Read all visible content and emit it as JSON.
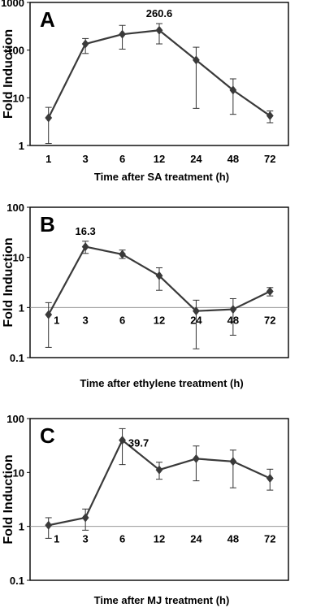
{
  "chart_data": [
    {
      "type": "line",
      "panel": "A",
      "scale": "log",
      "ylim": [
        1,
        1000
      ],
      "yticks": [
        "1",
        "10",
        "100",
        "1000"
      ],
      "categories": [
        "1",
        "3",
        "6",
        "12",
        "24",
        "48",
        "72"
      ],
      "values": [
        3.8,
        135,
        215,
        260.6,
        62,
        14.5,
        4.2
      ],
      "err_low": [
        1.1,
        85,
        105,
        135,
        6,
        4.5,
        3.0
      ],
      "err_high": [
        6.3,
        175,
        330,
        360,
        115,
        25,
        5.3
      ],
      "xlabel": "Time after SA treatment (h)",
      "ylabel": "Fold Induction",
      "annotation": {
        "text": "260.6",
        "index": 3
      },
      "reference_line": false,
      "grid": false,
      "color": "#3a3a3a"
    },
    {
      "type": "line",
      "panel": "B",
      "scale": "log",
      "ylim": [
        0.1,
        100
      ],
      "yticks": [
        "0.1",
        "1",
        "10",
        "100"
      ],
      "categories": [
        "1",
        "3",
        "6",
        "12",
        "24",
        "48",
        "72"
      ],
      "values": [
        0.72,
        16.3,
        11.5,
        4.3,
        0.85,
        0.92,
        2.1
      ],
      "err_low": [
        0.16,
        12,
        9.5,
        2.2,
        0.15,
        0.28,
        1.7
      ],
      "err_high": [
        1.25,
        21,
        14,
        6.2,
        1.4,
        1.5,
        2.5
      ],
      "xlabel": "Time after ethylene treatment (h)",
      "ylabel": "Fold Induction",
      "annotation": {
        "text": "16.3",
        "index": 1
      },
      "reference_line": true,
      "grid": false,
      "color": "#3a3a3a"
    },
    {
      "type": "line",
      "panel": "C",
      "scale": "log",
      "ylim": [
        0.1,
        100
      ],
      "yticks": [
        "0.1",
        "1",
        "10",
        "100"
      ],
      "categories": [
        "1",
        "3",
        "6",
        "12",
        "24",
        "48",
        "72"
      ],
      "values": [
        1.05,
        1.45,
        39.7,
        11.2,
        18,
        16,
        7.8
      ],
      "err_low": [
        0.6,
        0.85,
        14,
        7.5,
        7,
        5.2,
        4.7
      ],
      "err_high": [
        1.45,
        2.1,
        65,
        15.5,
        31,
        26,
        11.5
      ],
      "xlabel": "Time after MJ treatment (h)",
      "ylabel": "Fold Induction",
      "annotation": {
        "text": "39.7",
        "index": 2
      },
      "reference_line": true,
      "grid": false,
      "color": "#3a3a3a"
    }
  ]
}
